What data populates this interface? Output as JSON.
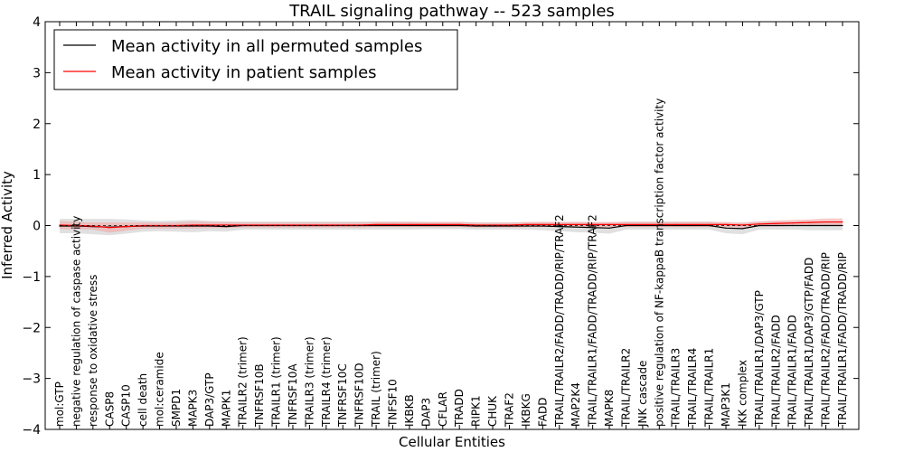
{
  "chart_data": {
    "type": "line",
    "title": "TRAIL signaling pathway -- 523 samples",
    "xlabel": "Cellular Entities",
    "ylabel": "Inferred Activity",
    "ylim": [
      -4,
      4
    ],
    "yticks": [
      -4,
      -3,
      -2,
      -1,
      0,
      1,
      2,
      3,
      4
    ],
    "ytick_labels": [
      "−4",
      "−3",
      "−2",
      "−1",
      "0",
      "1",
      "2",
      "3",
      "4"
    ],
    "grid": false,
    "legend_position": "top-left",
    "categories": [
      "mol:GTP",
      "negative regulation of caspase activity",
      "response to oxidative stress",
      "CASP8",
      "CASP10",
      "cell death",
      "mol:ceramide",
      "SMPD1",
      "MAPK3",
      "DAP3/GTP",
      "MAPK1",
      "TRAILR2 (trimer)",
      "TNFRSF10B",
      "TRAILR1 (trimer)",
      "TNFRSF10A",
      "TRAILR3 (trimer)",
      "TRAILR4 (trimer)",
      "TNFRSF10C",
      "TNFRSF10D",
      "TRAIL (trimer)",
      "TNFSF10",
      "IKBKB",
      "DAP3",
      "CFLAR",
      "TRADD",
      "RIPK1",
      "CHUK",
      "TRAF2",
      "IKBKG",
      "FADD",
      "TRAIL/TRAILR2/FADD/TRADD/RIP/TRAF2",
      "MAP2K4",
      "TRAIL/TRAILR1/FADD/TRADD/RIP/TRAF2",
      "MAPK8",
      "TRAIL/TRAILR2",
      "JNK cascade",
      "positive regulation of NF-kappaB transcription factor activity",
      "TRAIL/TRAILR3",
      "TRAIL/TRAILR4",
      "TRAIL/TRAILR1",
      "MAP3K1",
      "IKK complex",
      "TRAIL/TRAILR1/DAP3/GTP",
      "TRAIL/TRAILR2/FADD",
      "TRAIL/TRAILR1/FADD",
      "TRAIL/TRAILR1/DAP3/GTP/FADD",
      "TRAIL/TRAILR2/FADD/TRADD/RIP",
      "TRAIL/TRAILR1/FADD/TRADD/RIP"
    ],
    "series": [
      {
        "name": "Mean activity in all permuted samples",
        "color": "#000000",
        "band_color": "#cccccc",
        "values": [
          -0.01,
          -0.01,
          -0.02,
          -0.03,
          -0.02,
          -0.01,
          -0.01,
          -0.01,
          -0.01,
          -0.01,
          -0.02,
          0.0,
          0.0,
          0.0,
          0.0,
          0.0,
          0.0,
          0.0,
          0.0,
          0.0,
          0.0,
          0.0,
          0.0,
          0.0,
          0.0,
          -0.01,
          -0.01,
          -0.01,
          -0.01,
          -0.01,
          -0.02,
          -0.03,
          -0.04,
          -0.05,
          0.0,
          0.0,
          0.0,
          0.0,
          0.0,
          0.0,
          -0.05,
          -0.06,
          0.0,
          0.0,
          0.0,
          0.0,
          0.0,
          0.0
        ],
        "spread": [
          0.14,
          0.14,
          0.15,
          0.16,
          0.14,
          0.11,
          0.1,
          0.11,
          0.12,
          0.1,
          0.1,
          0.08,
          0.08,
          0.08,
          0.08,
          0.08,
          0.08,
          0.08,
          0.08,
          0.08,
          0.08,
          0.08,
          0.07,
          0.07,
          0.07,
          0.07,
          0.07,
          0.07,
          0.07,
          0.08,
          0.09,
          0.1,
          0.1,
          0.11,
          0.08,
          0.08,
          0.08,
          0.08,
          0.08,
          0.08,
          0.1,
          0.11,
          0.08,
          0.08,
          0.08,
          0.09,
          0.09,
          0.09
        ]
      },
      {
        "name": "Mean activity in patient samples",
        "color": "#ff0000",
        "band_color": "#f4a0a0",
        "values": [
          0.01,
          0.0,
          -0.01,
          -0.04,
          -0.02,
          0.0,
          0.0,
          0.0,
          0.01,
          0.01,
          0.01,
          0.01,
          0.01,
          0.01,
          0.01,
          0.01,
          0.01,
          0.01,
          0.01,
          0.02,
          0.02,
          0.02,
          0.02,
          0.02,
          0.02,
          0.01,
          0.01,
          0.01,
          0.02,
          0.02,
          0.02,
          0.02,
          0.02,
          0.02,
          0.02,
          0.02,
          0.02,
          0.02,
          0.02,
          0.02,
          0.02,
          0.01,
          0.03,
          0.04,
          0.05,
          0.06,
          0.07,
          0.07
        ],
        "spread": [
          0.08,
          0.07,
          0.07,
          0.1,
          0.08,
          0.06,
          0.06,
          0.06,
          0.07,
          0.06,
          0.06,
          0.05,
          0.05,
          0.05,
          0.05,
          0.05,
          0.05,
          0.05,
          0.05,
          0.05,
          0.05,
          0.05,
          0.05,
          0.05,
          0.05,
          0.05,
          0.05,
          0.05,
          0.05,
          0.05,
          0.05,
          0.05,
          0.05,
          0.05,
          0.05,
          0.05,
          0.05,
          0.05,
          0.05,
          0.05,
          0.05,
          0.05,
          0.05,
          0.06,
          0.06,
          0.06,
          0.07,
          0.07
        ]
      }
    ]
  }
}
